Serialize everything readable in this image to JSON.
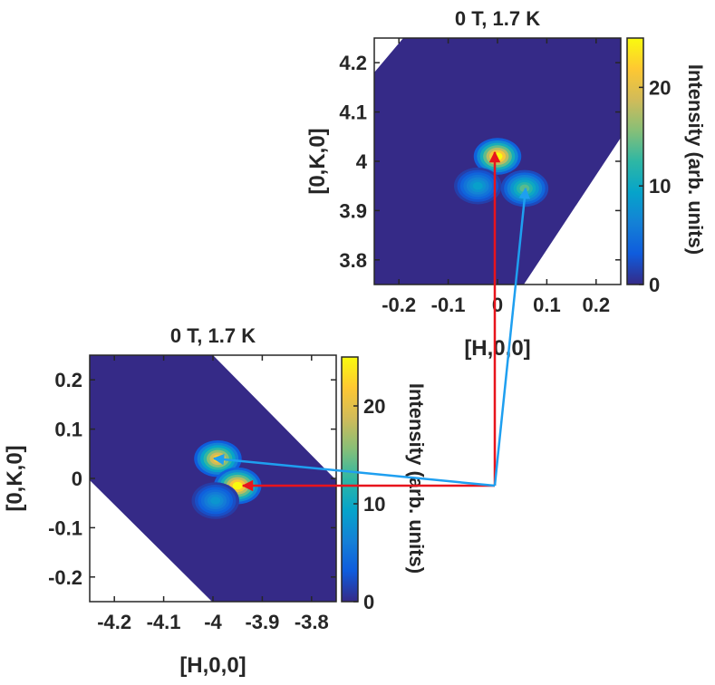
{
  "colors": {
    "background_map": "#352a87",
    "axis": "#262626",
    "arrow_red": "#e8141c",
    "arrow_blue": "#1e9ff0",
    "colormap": [
      "#352a87",
      "#0f5cdd",
      "#1481d6",
      "#06a4ca",
      "#2eb7a4",
      "#87bf77",
      "#d1bb59",
      "#fec832",
      "#f9fb0e"
    ]
  },
  "chart_data": [
    {
      "type": "heatmap",
      "title": "0 T, 1.7 K",
      "xlabel": "[H,0,0]",
      "ylabel": "[0,K,0]",
      "xlim": [
        -0.25,
        0.25
      ],
      "ylim": [
        3.75,
        4.25
      ],
      "xticks": [
        -0.2,
        -0.1,
        0,
        0.1,
        0.2
      ],
      "xtick_labels": [
        "-0.2",
        "-0.1",
        "0",
        "0.1",
        "0.2"
      ],
      "yticks": [
        3.8,
        3.9,
        4.0,
        4.1,
        4.2
      ],
      "ytick_labels": [
        "3.8",
        "3.9",
        "4",
        "4.1",
        "4.2"
      ],
      "colorbar": {
        "label": "Intensity (arb. units)",
        "range": [
          0,
          25
        ],
        "ticks": [
          0,
          10,
          20
        ],
        "tick_labels": [
          "0",
          "10",
          "20"
        ]
      },
      "peaks": [
        {
          "x": 0.0,
          "y": 4.01,
          "intensity": 25
        },
        {
          "x": -0.04,
          "y": 3.95,
          "intensity": 9
        },
        {
          "x": 0.055,
          "y": 3.945,
          "intensity": 14
        }
      ]
    },
    {
      "type": "heatmap",
      "title": "0 T, 1.7 K",
      "xlabel": "[H,0,0]",
      "ylabel": "[0,K,0]",
      "xlim": [
        -4.25,
        -3.75
      ],
      "ylim": [
        -0.25,
        0.25
      ],
      "xticks": [
        -4.2,
        -4.1,
        -4.0,
        -3.9,
        -3.8
      ],
      "xtick_labels": [
        "-4.2",
        "-4.1",
        "-4",
        "-3.9",
        "-3.8"
      ],
      "yticks": [
        -0.2,
        -0.1,
        0,
        0.1,
        0.2
      ],
      "ytick_labels": [
        "-0.2",
        "-0.1",
        "0",
        "0.1",
        "0.2"
      ],
      "colorbar": {
        "label": "Intensity (arb. units)",
        "range": [
          0,
          25
        ],
        "ticks": [
          0,
          10,
          20
        ],
        "tick_labels": [
          "0",
          "10",
          "20"
        ]
      },
      "peaks": [
        {
          "x": -3.99,
          "y": 0.04,
          "intensity": 22
        },
        {
          "x": -3.95,
          "y": -0.015,
          "intensity": 25
        },
        {
          "x": -3.995,
          "y": -0.045,
          "intensity": 8
        }
      ]
    }
  ]
}
